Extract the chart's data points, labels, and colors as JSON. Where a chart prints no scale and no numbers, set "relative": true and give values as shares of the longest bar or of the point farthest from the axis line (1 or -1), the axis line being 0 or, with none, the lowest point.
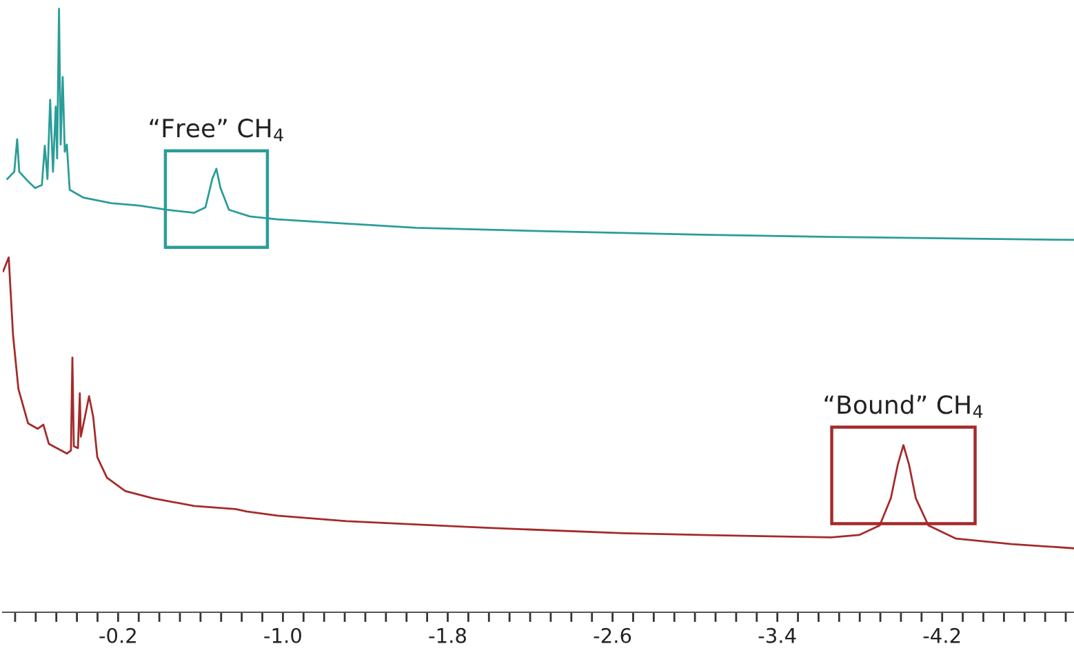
{
  "chart_data": {
    "type": "line",
    "relative": true,
    "series": [
      {
        "color": "#2a9d98",
        "x": [
          0.338,
          0.304,
          0.29,
          0.28,
          0.237,
          0.203,
          0.17,
          0.156,
          0.143,
          0.13,
          0.116,
          0.103,
          0.096,
          0.087,
          0.079,
          0.069,
          0.059,
          0.049,
          0.035,
          -0.032,
          -0.166,
          -0.301,
          -0.435,
          -0.57,
          -0.624,
          -0.657,
          -0.677,
          -0.697,
          -0.738,
          -0.839,
          -0.973,
          -1.309,
          -1.645,
          -2.318,
          -2.99,
          -3.662,
          -4.334,
          -4.839
        ],
        "values": [
          0.718,
          0.73,
          0.784,
          0.73,
          0.714,
          0.703,
          0.708,
          0.773,
          0.718,
          0.849,
          0.73,
          0.838,
          0.752,
          1.0,
          0.775,
          0.887,
          0.763,
          0.775,
          0.7,
          0.687,
          0.678,
          0.674,
          0.667,
          0.662,
          0.671,
          0.718,
          0.735,
          0.703,
          0.667,
          0.656,
          0.651,
          0.644,
          0.637,
          0.631,
          0.626,
          0.622,
          0.619,
          0.617
        ]
      },
      {
        "color": "#a52a2a",
        "x": [
          0.358,
          0.331,
          0.31,
          0.284,
          0.237,
          0.19,
          0.163,
          0.136,
          0.049,
          0.029,
          0.022,
          0.015,
          -0.005,
          -0.014,
          -0.019,
          -0.039,
          -0.059,
          -0.079,
          -0.099,
          -0.146,
          -0.234,
          -0.368,
          -0.57,
          -0.771,
          -0.825,
          -0.973,
          -1.309,
          -1.982,
          -2.654,
          -3.326,
          -3.662,
          -3.797,
          -3.897,
          -3.951,
          -3.985,
          -4.012,
          -4.039,
          -4.072,
          -4.133,
          -4.267,
          -4.536,
          -4.839
        ],
        "values": [
          0.565,
          0.588,
          0.459,
          0.37,
          0.313,
          0.304,
          0.311,
          0.279,
          0.263,
          0.268,
          0.422,
          0.275,
          0.272,
          0.363,
          0.291,
          0.324,
          0.358,
          0.324,
          0.257,
          0.223,
          0.201,
          0.189,
          0.176,
          0.171,
          0.167,
          0.16,
          0.151,
          0.14,
          0.131,
          0.126,
          0.124,
          0.128,
          0.144,
          0.189,
          0.245,
          0.277,
          0.245,
          0.189,
          0.144,
          0.122,
          0.113,
          0.106
        ]
      }
    ],
    "xlim": [
      0.36,
      -4.84
    ],
    "xticks": [
      -0.2,
      {
        "value": -1.0,
        "label": "-1.0"
      },
      -1.8,
      -2.6,
      -3.4,
      -4.2
    ],
    "annotations": [
      {
        "text": "“Free” CH$_{4}$",
        "x": -0.677,
        "y": 0.735
      },
      {
        "text": "“Bound” CH$_{4}$",
        "x": -4.012,
        "y": 0.277
      }
    ],
    "grid": false,
    "legend": false,
    "marker": "none",
    "line_style": "solid"
  }
}
